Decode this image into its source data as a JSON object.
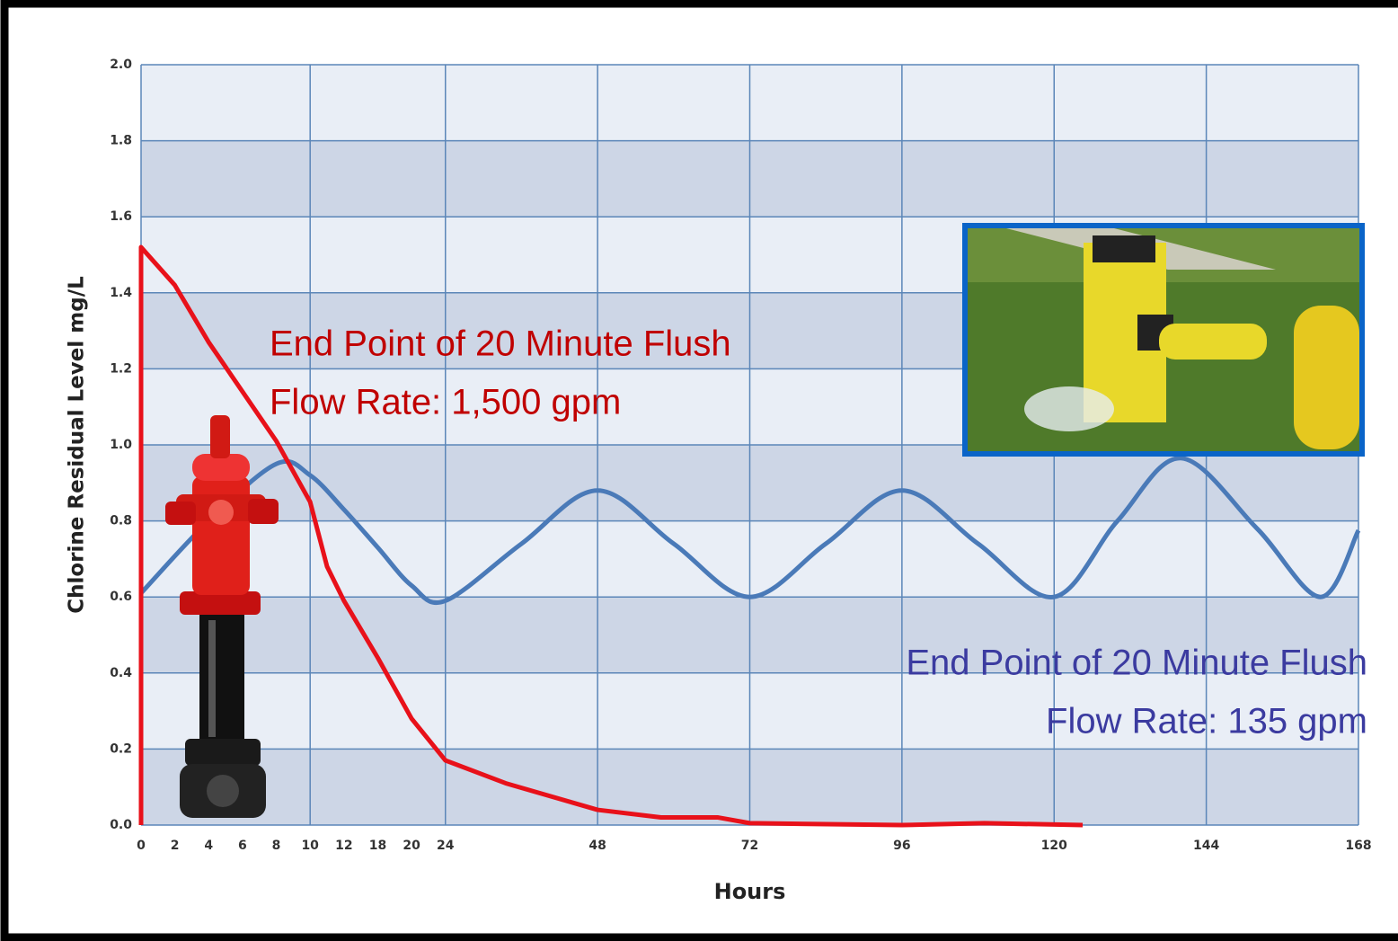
{
  "chart_data": {
    "type": "line",
    "ylabel": "Chlorine Residual Level  mg/L",
    "xlabel": "Hours",
    "ylim": [
      0,
      2
    ],
    "yticks": [
      {
        "value": 0,
        "label": "0.0"
      },
      0.2,
      0.4,
      0.6,
      0.8,
      {
        "value": 1,
        "label": "1.0"
      },
      1.2,
      1.4,
      1.6,
      1.8,
      {
        "value": 2,
        "label": "2.0"
      }
    ],
    "xlim": [
      0,
      168
    ],
    "xticks": [
      0,
      2,
      4,
      6,
      8,
      10,
      12,
      18,
      20,
      24,
      48,
      72,
      96,
      120,
      144,
      168
    ],
    "xgrid": [
      0,
      10,
      24,
      48,
      72,
      96,
      120,
      144,
      168
    ],
    "grid": true,
    "series": [
      {
        "color": "#e8111a",
        "smooth": false,
        "x": [
          0,
          0,
          2,
          4,
          8,
          10,
          11,
          12,
          18,
          20,
          24,
          33.5,
          48,
          58,
          67,
          72,
          96,
          109,
          124.5
        ],
        "values": [
          0,
          1.52,
          1.42,
          1.27,
          1.01,
          0.85,
          0.68,
          0.59,
          0.44,
          0.28,
          0.17,
          0.11,
          0.04,
          0.02,
          0.02,
          0.005,
          0,
          0.005,
          0
        ]
      },
      {
        "color": "#4a7ab8",
        "smooth": true,
        "x": [
          0,
          4,
          8,
          10,
          12,
          18,
          20,
          24,
          36,
          48,
          60,
          72,
          84,
          96,
          108,
          120,
          130,
          140,
          152,
          162,
          168
        ],
        "values": [
          0.61,
          0.8,
          0.95,
          0.92,
          0.83,
          0.73,
          0.63,
          0.59,
          0.74,
          0.88,
          0.74,
          0.6,
          0.74,
          0.88,
          0.74,
          0.6,
          0.8,
          0.965,
          0.78,
          0.6,
          0.775
        ]
      }
    ],
    "annotations": [
      {
        "text": "End Point of 20 Minute Flush",
        "color": "#c00000"
      },
      {
        "text": "Flow Rate: 1,500 gpm",
        "color": "#c00000"
      },
      {
        "text": "End Point of 20 Minute Flush",
        "color": "#3b3ba0"
      },
      {
        "text": "Flow Rate: 135 gpm",
        "color": "#3b3ba0"
      }
    ]
  }
}
